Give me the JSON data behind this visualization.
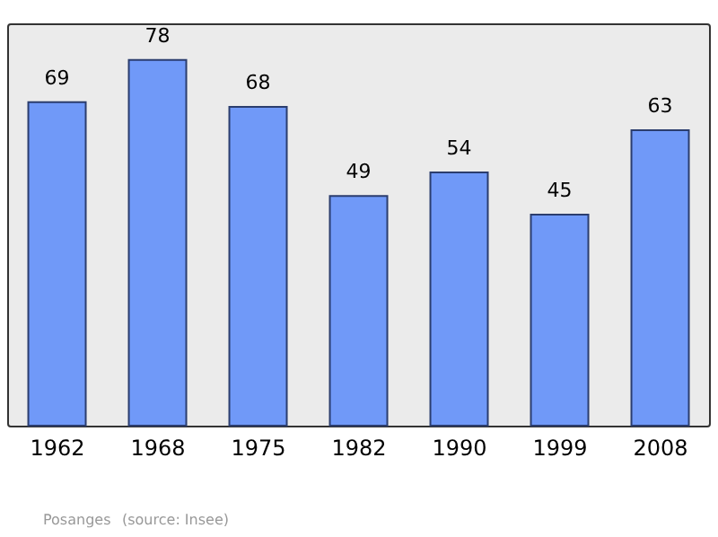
{
  "chart_data": {
    "type": "bar",
    "categories": [
      "1962",
      "1968",
      "1975",
      "1982",
      "1990",
      "1999",
      "2008"
    ],
    "values": [
      69,
      78,
      68,
      49,
      54,
      45,
      63
    ],
    "color": "#7099f8",
    "data_labels": true,
    "tick_labels": "x",
    "annotations": [
      "Posanges",
      "(source: Insee)"
    ]
  }
}
